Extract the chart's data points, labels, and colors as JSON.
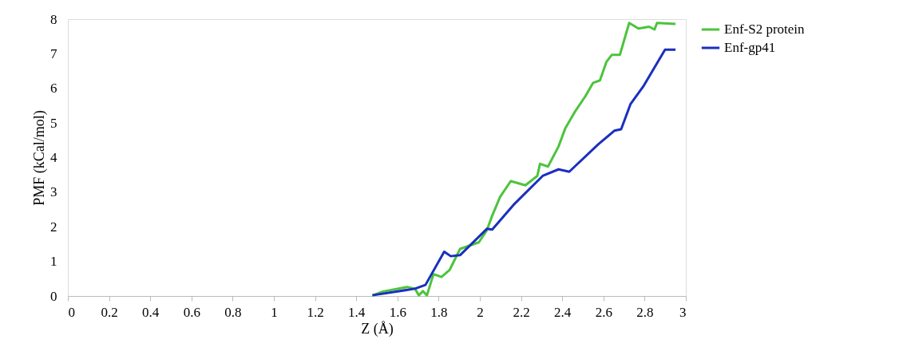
{
  "chart_data": {
    "type": "line",
    "xlabel": "Z (Å)",
    "ylabel": "PMF (kCal/mol)",
    "xlim": [
      0,
      3
    ],
    "xticks": [
      0,
      0.2,
      0.4,
      0.6,
      0.8,
      1,
      1.2,
      1.4,
      1.6,
      1.8,
      2,
      2.2,
      2.4,
      2.6,
      2.8,
      3
    ],
    "ylim": [
      0,
      8
    ],
    "yticks": [
      0,
      1,
      2,
      3,
      4,
      5,
      6,
      7,
      8
    ],
    "grid": false,
    "legend": "right",
    "marker": "none",
    "line_style": "solid",
    "series": [
      {
        "name": "Enf-S2 protein",
        "color": "#4cc43c",
        "x": [
          1.48,
          1.53,
          1.646,
          1.685,
          1.704,
          1.724,
          1.743,
          1.775,
          1.814,
          1.853,
          1.904,
          1.995,
          2.034,
          2.06,
          2.098,
          2.124,
          2.15,
          2.221,
          2.279,
          2.292,
          2.331,
          2.382,
          2.415,
          2.46,
          2.512,
          2.55,
          2.583,
          2.615,
          2.641,
          2.68,
          2.725,
          2.77,
          2.822,
          2.848,
          2.86,
          2.95
        ],
        "values": [
          0.02,
          0.13,
          0.26,
          0.21,
          0.02,
          0.14,
          0.02,
          0.63,
          0.55,
          0.75,
          1.36,
          1.55,
          1.9,
          2.32,
          2.86,
          3.09,
          3.32,
          3.2,
          3.47,
          3.82,
          3.74,
          4.32,
          4.85,
          5.31,
          5.77,
          6.16,
          6.23,
          6.77,
          6.97,
          6.97,
          7.89,
          7.73,
          7.78,
          7.7,
          7.89,
          7.86
        ]
      },
      {
        "name": "Enf-gp41",
        "color": "#1a2fbf",
        "x": [
          1.478,
          1.685,
          1.736,
          1.827,
          1.859,
          1.904,
          2.034,
          2.06,
          2.163,
          2.305,
          2.382,
          2.434,
          2.576,
          2.654,
          2.686,
          2.731,
          2.796,
          2.899,
          2.95
        ],
        "values": [
          0.02,
          0.21,
          0.32,
          1.28,
          1.15,
          1.18,
          1.94,
          1.92,
          2.63,
          3.47,
          3.66,
          3.59,
          4.39,
          4.78,
          4.82,
          5.54,
          6.08,
          7.12,
          7.12
        ]
      }
    ]
  }
}
